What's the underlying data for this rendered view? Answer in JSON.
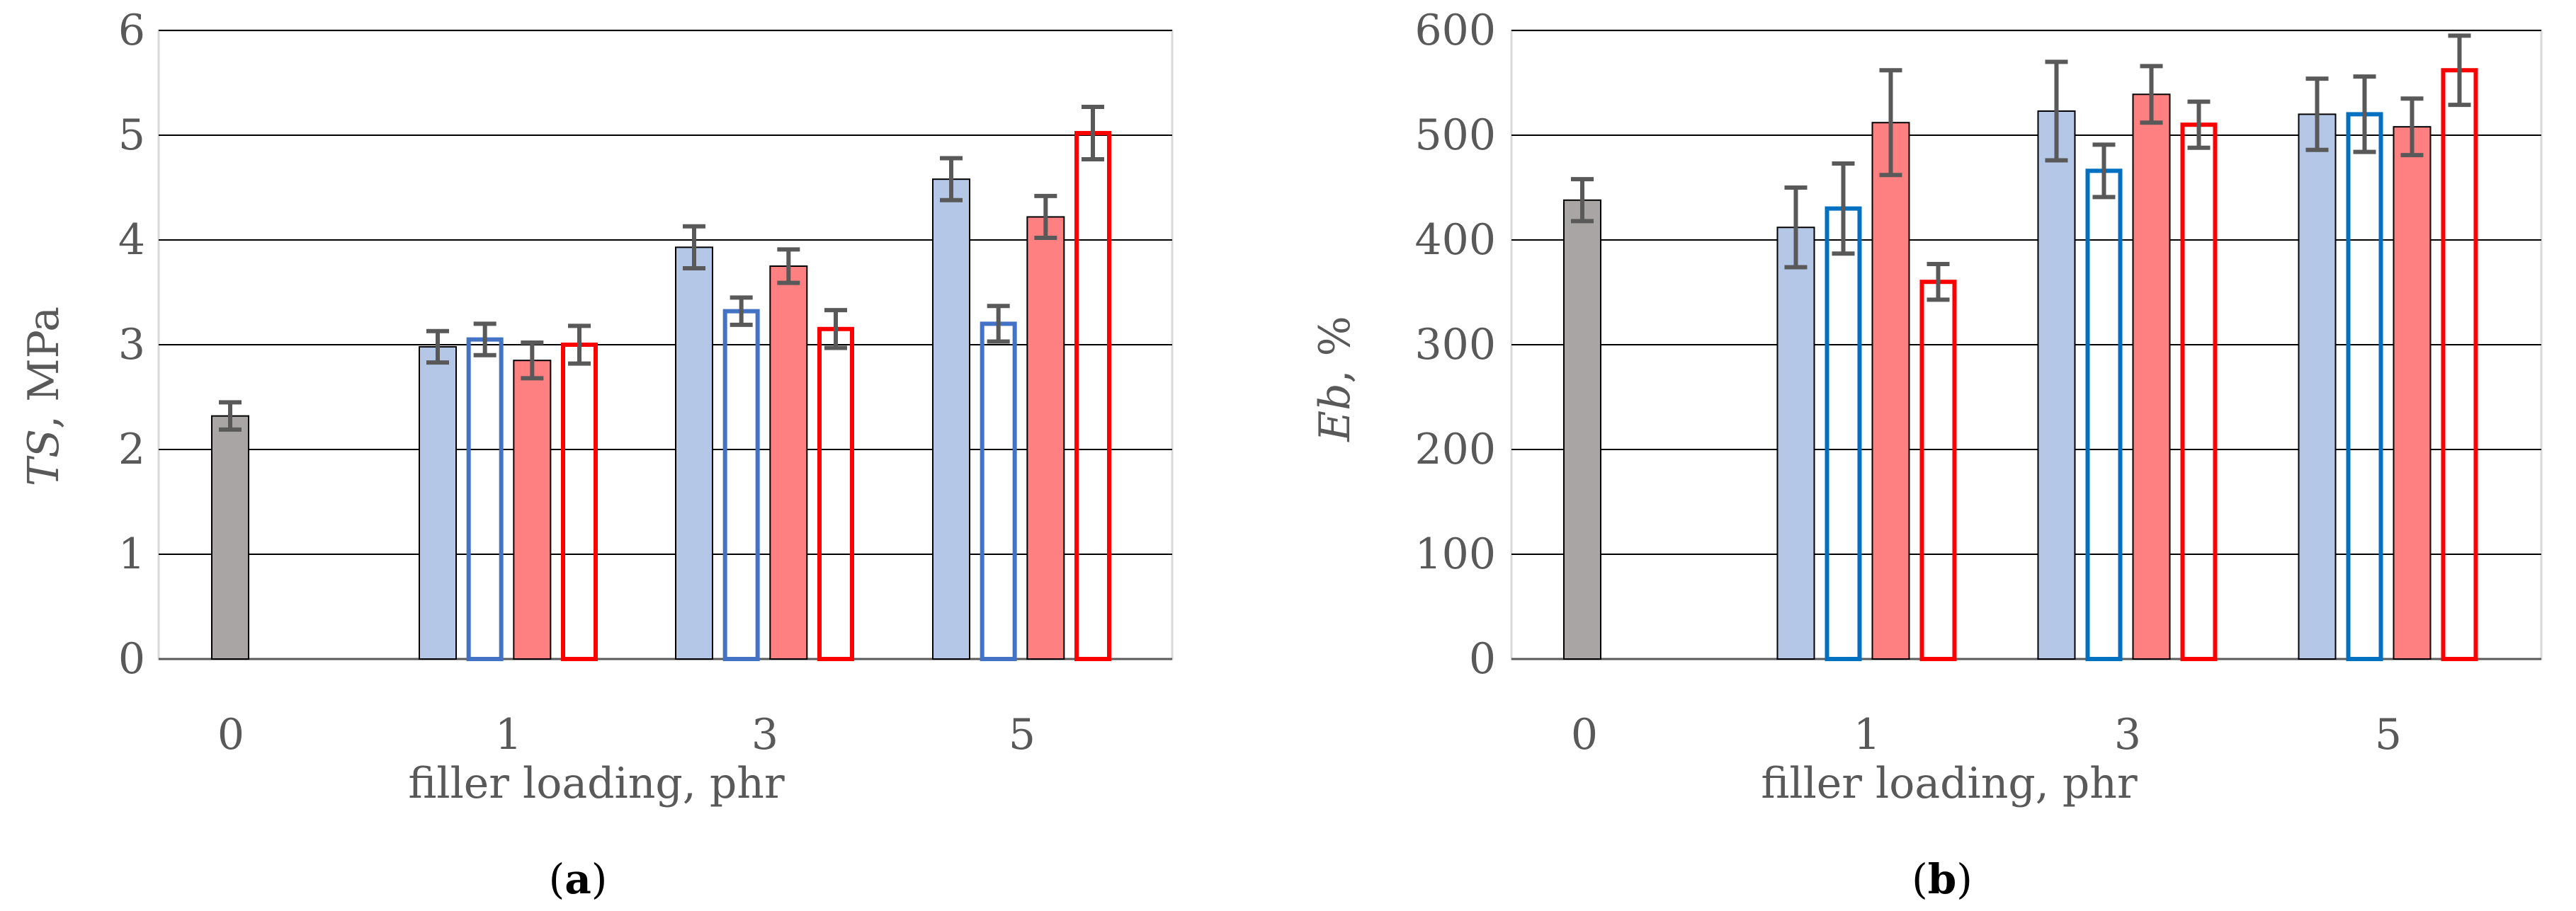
{
  "figure": {
    "panels": [
      "a",
      "b"
    ]
  },
  "chart_data": [
    {
      "type": "bar",
      "panel_label": "a",
      "ylabel_italic": "TS",
      "ylabel_rest": ", MPa",
      "xlabel": "filler loading, phr",
      "categories": [
        "0",
        "1",
        "3",
        "5"
      ],
      "ylim": [
        0,
        6
      ],
      "yticks": [
        0,
        1,
        2,
        3,
        4,
        5,
        6
      ],
      "grid": true,
      "legend": "none",
      "control": {
        "category": "0",
        "value": 2.32,
        "error": 0.13,
        "color": "#aaa5a5"
      },
      "series": [
        {
          "fill": "#b4c7e7",
          "stroke": "#000000",
          "hollow": false,
          "values": [
            null,
            2.98,
            3.93,
            4.58
          ],
          "errors": [
            null,
            0.15,
            0.2,
            0.2
          ]
        },
        {
          "fill": "none",
          "stroke": "#4472c4",
          "hollow": true,
          "values": [
            null,
            3.05,
            3.32,
            3.2
          ],
          "errors": [
            null,
            0.15,
            0.13,
            0.17
          ]
        },
        {
          "fill": "#ff8080",
          "stroke": "#000000",
          "hollow": false,
          "values": [
            null,
            2.85,
            3.75,
            4.22
          ],
          "errors": [
            null,
            0.17,
            0.16,
            0.2
          ]
        },
        {
          "fill": "none",
          "stroke": "#ff0000",
          "hollow": true,
          "values": [
            null,
            3.0,
            3.15,
            5.02
          ],
          "errors": [
            null,
            0.18,
            0.18,
            0.25
          ]
        }
      ],
      "error_bar_color": "#595959"
    },
    {
      "type": "bar",
      "panel_label": "b",
      "ylabel_italic": "Eb",
      "ylabel_rest": ", %",
      "xlabel": "filler loading, phr",
      "categories": [
        "0",
        "1",
        "3",
        "5"
      ],
      "ylim": [
        0,
        600
      ],
      "yticks": [
        0,
        100,
        200,
        300,
        400,
        500,
        600
      ],
      "grid": true,
      "legend": "none",
      "control": {
        "category": "0",
        "value": 438,
        "error": 20,
        "color": "#aaa5a5"
      },
      "series": [
        {
          "fill": "#b4c7e7",
          "stroke": "#000000",
          "hollow": false,
          "values": [
            null,
            412,
            523,
            520
          ],
          "errors": [
            null,
            38,
            47,
            34
          ]
        },
        {
          "fill": "none",
          "stroke": "#0070c0",
          "hollow": true,
          "values": [
            null,
            430,
            466,
            520
          ],
          "errors": [
            null,
            43,
            25,
            36
          ]
        },
        {
          "fill": "#ff8080",
          "stroke": "#000000",
          "hollow": false,
          "values": [
            null,
            512,
            539,
            508
          ],
          "errors": [
            null,
            50,
            27,
            27
          ]
        },
        {
          "fill": "none",
          "stroke": "#ff0000",
          "hollow": true,
          "values": [
            null,
            360,
            510,
            562
          ],
          "errors": [
            null,
            17,
            22,
            33
          ]
        }
      ],
      "error_bar_color": "#595959"
    }
  ]
}
